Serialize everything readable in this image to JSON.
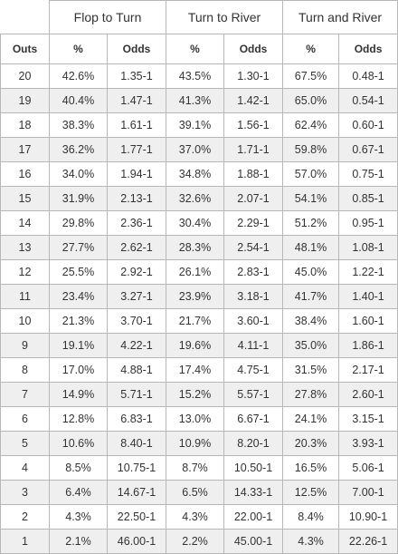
{
  "table": {
    "group_headers": [
      "Flop to Turn",
      "Turn to River",
      "Turn and River"
    ],
    "sub_headers": {
      "outs": "Outs",
      "pct": "%",
      "odds": "Odds"
    },
    "rows": [
      {
        "outs": "20",
        "ft_pct": "42.6%",
        "ft_odds": "1.35-1",
        "tr_pct": "43.5%",
        "tr_odds": "1.30-1",
        "tar_pct": "67.5%",
        "tar_odds": "0.48-1"
      },
      {
        "outs": "19",
        "ft_pct": "40.4%",
        "ft_odds": "1.47-1",
        "tr_pct": "41.3%",
        "tr_odds": "1.42-1",
        "tar_pct": "65.0%",
        "tar_odds": "0.54-1"
      },
      {
        "outs": "18",
        "ft_pct": "38.3%",
        "ft_odds": "1.61-1",
        "tr_pct": "39.1%",
        "tr_odds": "1.56-1",
        "tar_pct": "62.4%",
        "tar_odds": "0.60-1"
      },
      {
        "outs": "17",
        "ft_pct": "36.2%",
        "ft_odds": "1.77-1",
        "tr_pct": "37.0%",
        "tr_odds": "1.71-1",
        "tar_pct": "59.8%",
        "tar_odds": "0.67-1"
      },
      {
        "outs": "16",
        "ft_pct": "34.0%",
        "ft_odds": "1.94-1",
        "tr_pct": "34.8%",
        "tr_odds": "1.88-1",
        "tar_pct": "57.0%",
        "tar_odds": "0.75-1"
      },
      {
        "outs": "15",
        "ft_pct": "31.9%",
        "ft_odds": "2.13-1",
        "tr_pct": "32.6%",
        "tr_odds": "2.07-1",
        "tar_pct": "54.1%",
        "tar_odds": "0.85-1"
      },
      {
        "outs": "14",
        "ft_pct": "29.8%",
        "ft_odds": "2.36-1",
        "tr_pct": "30.4%",
        "tr_odds": "2.29-1",
        "tar_pct": "51.2%",
        "tar_odds": "0.95-1"
      },
      {
        "outs": "13",
        "ft_pct": "27.7%",
        "ft_odds": "2.62-1",
        "tr_pct": "28.3%",
        "tr_odds": "2.54-1",
        "tar_pct": "48.1%",
        "tar_odds": "1.08-1"
      },
      {
        "outs": "12",
        "ft_pct": "25.5%",
        "ft_odds": "2.92-1",
        "tr_pct": "26.1%",
        "tr_odds": "2.83-1",
        "tar_pct": "45.0%",
        "tar_odds": "1.22-1"
      },
      {
        "outs": "11",
        "ft_pct": "23.4%",
        "ft_odds": "3.27-1",
        "tr_pct": "23.9%",
        "tr_odds": "3.18-1",
        "tar_pct": "41.7%",
        "tar_odds": "1.40-1"
      },
      {
        "outs": "10",
        "ft_pct": "21.3%",
        "ft_odds": "3.70-1",
        "tr_pct": "21.7%",
        "tr_odds": "3.60-1",
        "tar_pct": "38.4%",
        "tar_odds": "1.60-1"
      },
      {
        "outs": "9",
        "ft_pct": "19.1%",
        "ft_odds": "4.22-1",
        "tr_pct": "19.6%",
        "tr_odds": "4.11-1",
        "tar_pct": "35.0%",
        "tar_odds": "1.86-1"
      },
      {
        "outs": "8",
        "ft_pct": "17.0%",
        "ft_odds": "4.88-1",
        "tr_pct": "17.4%",
        "tr_odds": "4.75-1",
        "tar_pct": "31.5%",
        "tar_odds": "2.17-1"
      },
      {
        "outs": "7",
        "ft_pct": "14.9%",
        "ft_odds": "5.71-1",
        "tr_pct": "15.2%",
        "tr_odds": "5.57-1",
        "tar_pct": "27.8%",
        "tar_odds": "2.60-1"
      },
      {
        "outs": "6",
        "ft_pct": "12.8%",
        "ft_odds": "6.83-1",
        "tr_pct": "13.0%",
        "tr_odds": "6.67-1",
        "tar_pct": "24.1%",
        "tar_odds": "3.15-1"
      },
      {
        "outs": "5",
        "ft_pct": "10.6%",
        "ft_odds": "8.40-1",
        "tr_pct": "10.9%",
        "tr_odds": "8.20-1",
        "tar_pct": "20.3%",
        "tar_odds": "3.93-1"
      },
      {
        "outs": "4",
        "ft_pct": "8.5%",
        "ft_odds": "10.75-1",
        "tr_pct": "8.7%",
        "tr_odds": "10.50-1",
        "tar_pct": "16.5%",
        "tar_odds": "5.06-1"
      },
      {
        "outs": "3",
        "ft_pct": "6.4%",
        "ft_odds": "14.67-1",
        "tr_pct": "6.5%",
        "tr_odds": "14.33-1",
        "tar_pct": "12.5%",
        "tar_odds": "7.00-1"
      },
      {
        "outs": "2",
        "ft_pct": "4.3%",
        "ft_odds": "22.50-1",
        "tr_pct": "4.3%",
        "tr_odds": "22.00-1",
        "tar_pct": "8.4%",
        "tar_odds": "10.90-1"
      },
      {
        "outs": "1",
        "ft_pct": "2.1%",
        "ft_odds": "46.00-1",
        "tr_pct": "2.2%",
        "tr_odds": "45.00-1",
        "tar_pct": "4.3%",
        "tar_odds": "22.26-1"
      }
    ]
  }
}
